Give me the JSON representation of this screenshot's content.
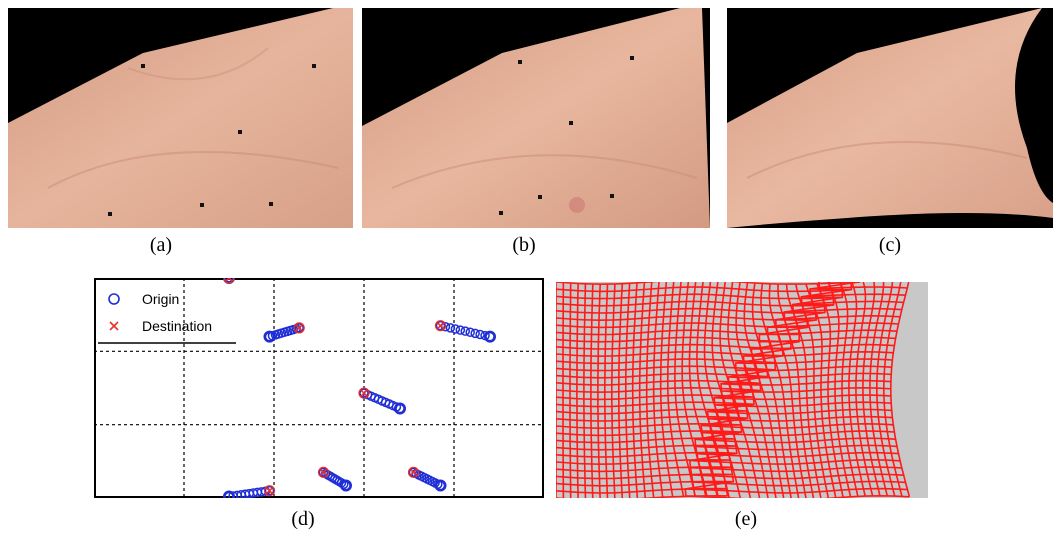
{
  "captions": {
    "a": "(a)",
    "b": "(b)",
    "c": "(c)",
    "d": "(d)",
    "e": "(e)"
  },
  "colors": {
    "skin_light": "#e8b49a",
    "skin_dark": "#c98b73",
    "origin": "#1f2fd6",
    "destination": "#e6312c",
    "grid_red": "#ff1a1a",
    "grid_bg": "#c8c8c8"
  },
  "chart_data": {
    "type": "scatter",
    "title": "",
    "xlabel": "",
    "ylabel": "",
    "xlim": [
      0,
      5
    ],
    "ylim": [
      0,
      3
    ],
    "grid": true,
    "legend": {
      "placement": "top-left",
      "entries": [
        "Origin",
        "Destination"
      ]
    },
    "series": [
      {
        "name": "Origin",
        "marker": "circle",
        "x": [
          1.95,
          4.4,
          3.4,
          1.5,
          2.8,
          3.85,
          1.5
        ],
        "y": [
          2.2,
          2.2,
          1.22,
          0.02,
          0.17,
          0.17,
          3.0
        ]
      },
      {
        "name": "Destination",
        "marker": "x",
        "x": [
          2.28,
          3.85,
          3.0,
          1.95,
          2.55,
          3.55,
          1.5
        ],
        "y": [
          2.32,
          2.35,
          1.43,
          0.1,
          0.35,
          0.35,
          3.0
        ]
      }
    ]
  }
}
